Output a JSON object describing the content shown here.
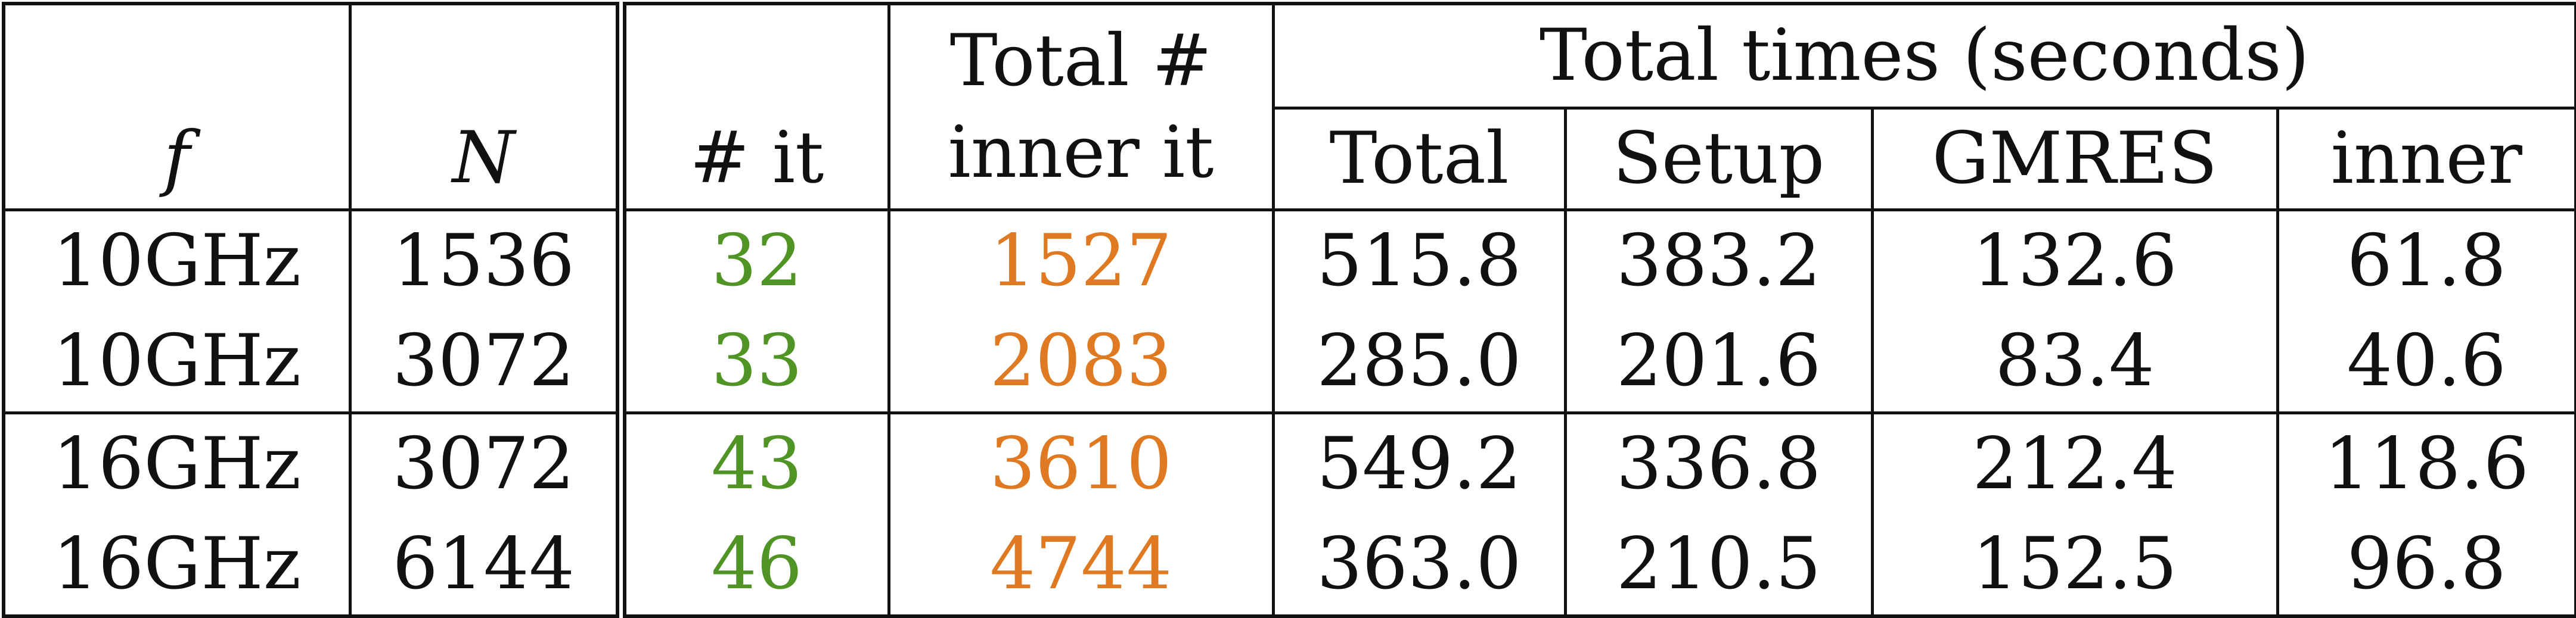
{
  "header": {
    "f": "f",
    "N": "N",
    "num_it": "# it",
    "total_inner_line1": "Total #",
    "total_inner_line2": "inner it",
    "total_times": "Total times (seconds)",
    "sub_total": "Total",
    "sub_setup": "Setup",
    "sub_gmres": "GMRES",
    "sub_inner": "inner"
  },
  "rows": [
    {
      "f": "10GHz",
      "N": "1536",
      "it": "32",
      "inner_it": "1527",
      "total": "515.8",
      "setup": "383.2",
      "gmres": "132.6",
      "inner": "61.8"
    },
    {
      "f": "10GHz",
      "N": "3072",
      "it": "33",
      "inner_it": "2083",
      "total": "285.0",
      "setup": "201.6",
      "gmres": "83.4",
      "inner": "40.6"
    },
    {
      "f": "16GHz",
      "N": "3072",
      "it": "43",
      "inner_it": "3610",
      "total": "549.2",
      "setup": "336.8",
      "gmres": "212.4",
      "inner": "118.6"
    },
    {
      "f": "16GHz",
      "N": "6144",
      "it": "46",
      "inner_it": "4744",
      "total": "363.0",
      "setup": "210.5",
      "gmres": "152.5",
      "inner": "96.8"
    }
  ],
  "colors": {
    "it": "#4f9424",
    "inner_it": "#e07a22"
  }
}
